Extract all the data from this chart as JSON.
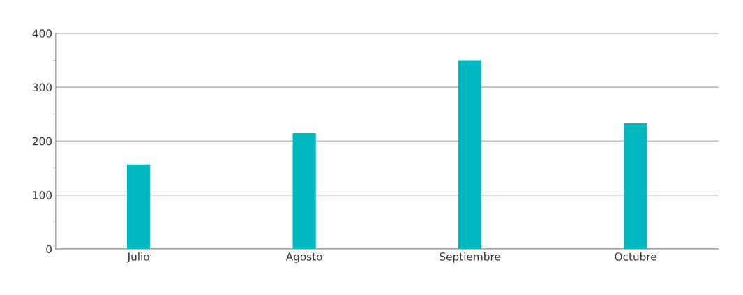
{
  "chart_data": {
    "type": "bar",
    "categories": [
      "Julio",
      "Agosto",
      "Septiembre",
      "Octubre"
    ],
    "values": [
      157,
      215,
      350,
      233
    ],
    "color": "#00b8c0",
    "ylim": [
      0,
      400
    ],
    "yticks": [
      0,
      {
        "value": 50,
        "label": null
      },
      100,
      {
        "value": 150,
        "label": null
      },
      200,
      {
        "value": 250,
        "label": null
      },
      300,
      {
        "value": 350,
        "label": null
      },
      400
    ],
    "grid": "y",
    "legend": false
  }
}
